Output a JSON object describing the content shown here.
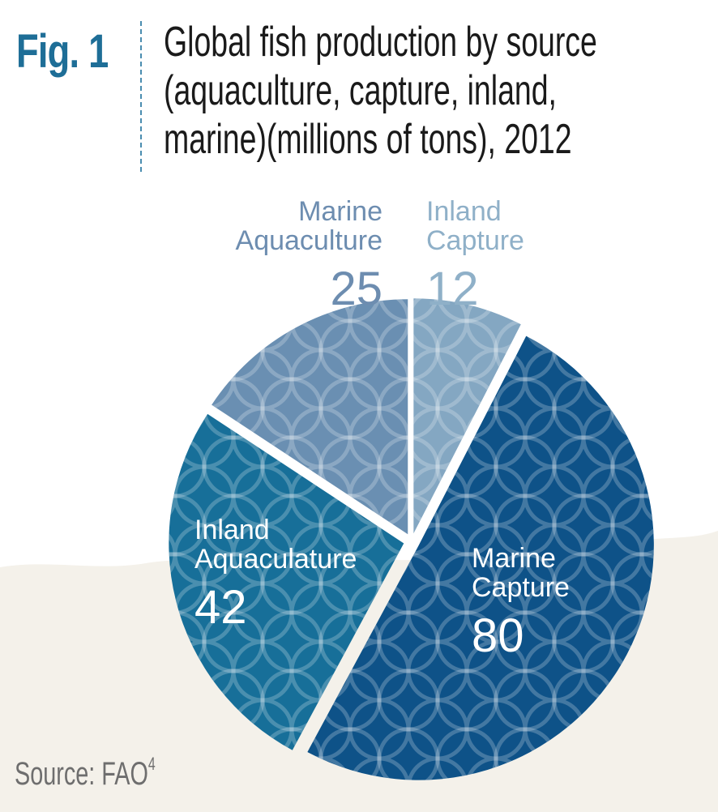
{
  "figure": {
    "label": "Fig. 1",
    "title_lines": [
      "Global fish production by source",
      "(aquaculture, capture, inland,",
      "marine)(millions of tons), 2012"
    ],
    "source_text": "Source: FAO",
    "source_superscript": "4"
  },
  "colors": {
    "accent": "#1e6e97",
    "background_texture": "#f4f1ea"
  },
  "chart_data": {
    "type": "pie",
    "title": "Global fish production by source (aquaculture, capture, inland, marine)(millions of tons), 2012",
    "unit": "millions of tons",
    "slices": [
      {
        "name_lines": [
          "Inland",
          "Capture"
        ],
        "value": 12,
        "color": "#84a7c2",
        "label_color": "#8fb0c8"
      },
      {
        "name_lines": [
          "Marine",
          "Capture"
        ],
        "value": 80,
        "color": "#0e5288",
        "label_color": "#ffffff"
      },
      {
        "name_lines": [
          "Inland",
          "Aquaculature"
        ],
        "value": 42,
        "color": "#176f99",
        "label_color": "#ffffff"
      },
      {
        "name_lines": [
          "Marine",
          "Aquaculture"
        ],
        "value": 25,
        "color": "#6a8fb2",
        "label_color": "#6d8db0"
      }
    ]
  }
}
